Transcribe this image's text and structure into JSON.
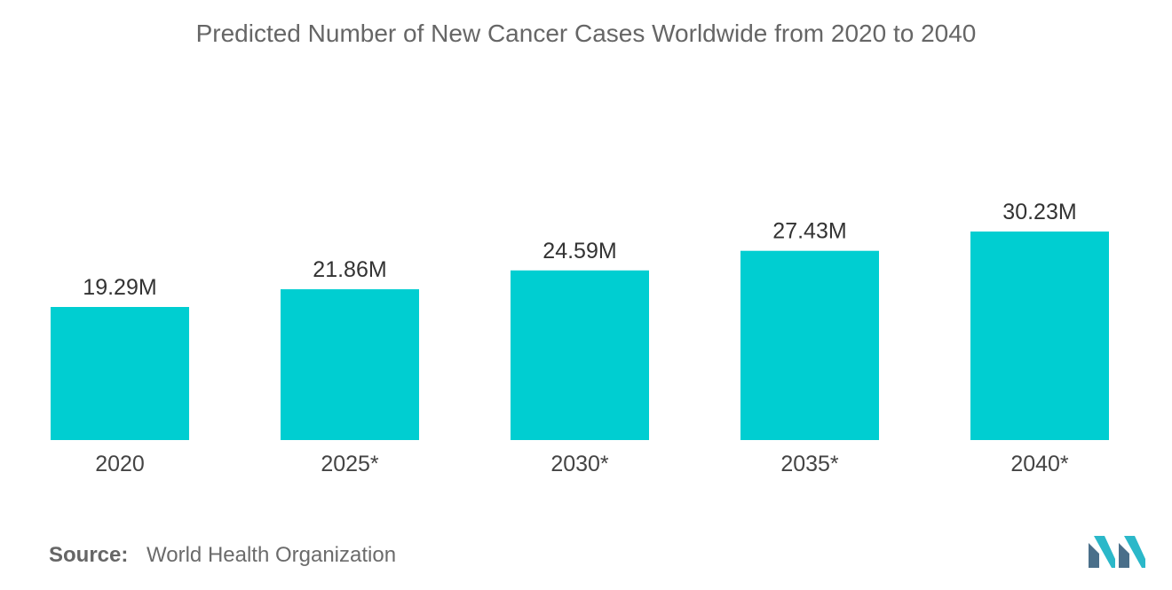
{
  "chart_data": {
    "type": "bar",
    "title": "Predicted Number of New Cancer Cases Worldwide from 2020 to 2040",
    "categories": [
      "2020",
      "2025*",
      "2030*",
      "2035*",
      "2040*"
    ],
    "values": [
      19.29,
      21.86,
      24.59,
      27.43,
      30.23
    ],
    "data_labels": [
      "19.29M",
      "21.86M",
      "24.59M",
      "27.43M",
      "30.23M"
    ],
    "unit": "M",
    "xlabel": "",
    "ylabel": "",
    "grid": false,
    "legend": "none",
    "bar_color": "#00CED1"
  },
  "source": {
    "label": "Source:",
    "text": "World Health Organization"
  },
  "colors": {
    "bar": "#00CED1",
    "title_text": "#666666",
    "axis_text": "#555555",
    "logo_dark": "#4a6f8a",
    "logo_light": "#2bb8c9"
  }
}
